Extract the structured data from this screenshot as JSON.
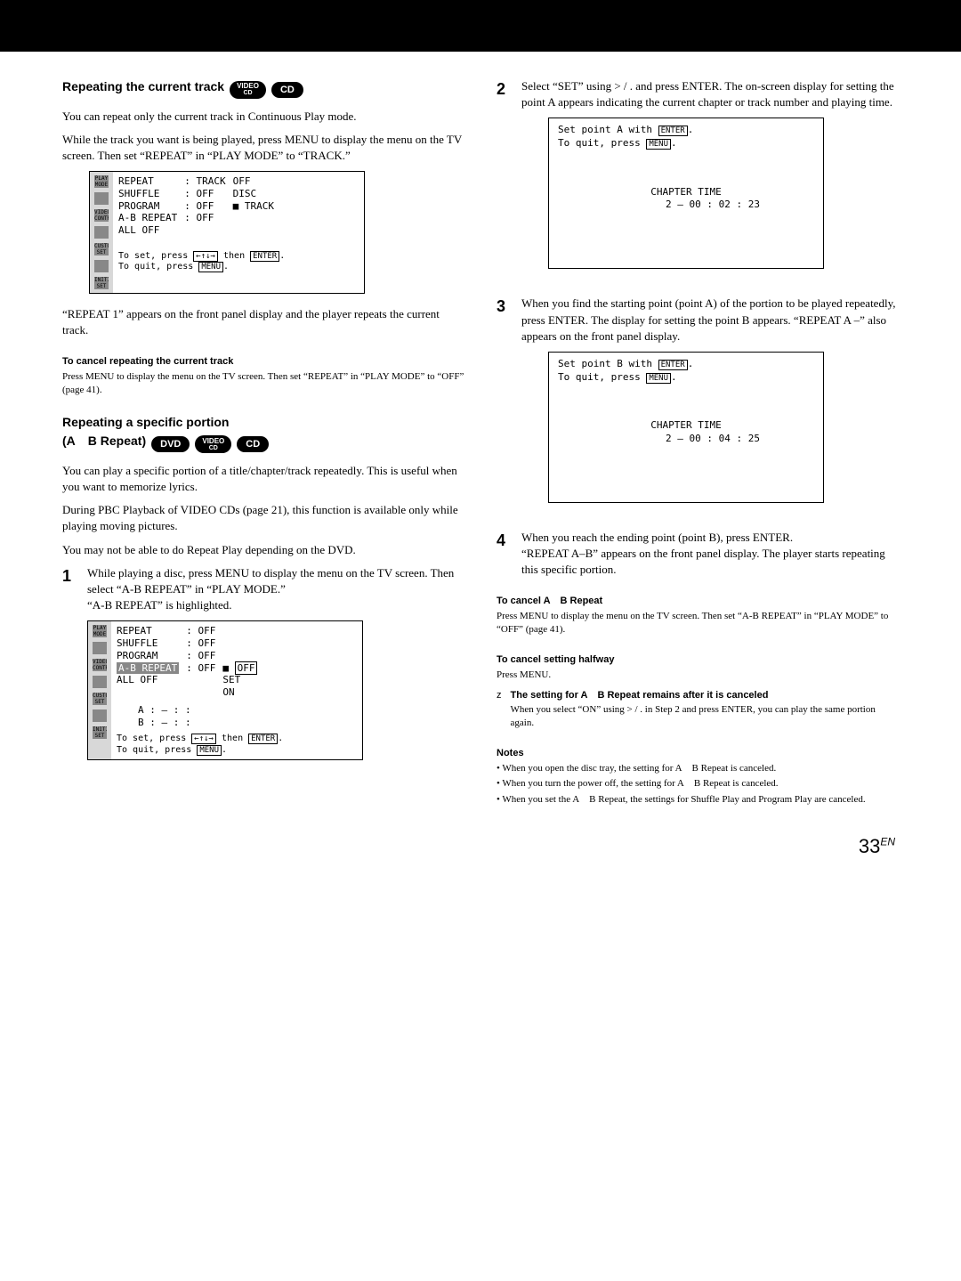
{
  "badges": {
    "video_l1": "VIDEO",
    "video_l2": "CD",
    "cd": "CD",
    "dvd": "DVD"
  },
  "left": {
    "s1_h": "Repeating the current track",
    "s1_p1": "You can repeat only the current track in Continuous Play mode.",
    "s1_p2": "While the track you want is being played, press MENU to display the menu on the TV screen.  Then set “REPEAT” in “PLAY MODE” to “TRACK.”",
    "osd1": {
      "rows": [
        [
          "REPEAT",
          ": TRACK",
          "OFF"
        ],
        [
          "SHUFFLE",
          ": OFF",
          "DISC"
        ],
        [
          "PROGRAM",
          ": OFF",
          "TRACK"
        ],
        [
          "A-B REPEAT",
          ": OFF",
          ""
        ],
        [
          "ALL OFF",
          "",
          ""
        ]
      ],
      "marker_at_row": 2,
      "foot1a": "To  set, press ",
      "foot1b": " then ",
      "foot2": "To  quit, press ",
      "key_arrows": "←↑↓→",
      "key_enter": "ENTER",
      "key_menu": "MENU"
    },
    "s1_p3": "“REPEAT 1” appears on the front panel display and the player repeats the current track.",
    "cancel1_h": "To cancel repeating the current track",
    "cancel1_p": "Press MENU to display the menu on the TV screen.  Then set “REPEAT” in “PLAY MODE” to “OFF” (page 41).",
    "s2_h_l1": "Repeating a specific portion",
    "s2_h_l2": "(A B Repeat)",
    "s2_p1": "You can play a specific portion of a title/chapter/track repeatedly. This is useful when you want to memorize lyrics.",
    "s2_p2": "During PBC Playback of VIDEO CDs (page 21), this function is available only while playing moving pictures.",
    "s2_p3": "You may not be able to do Repeat Play depending on the DVD.",
    "step1": "While playing a disc, press MENU to display the menu on the TV screen.  Then select “A-B REPEAT” in “PLAY MODE.”\n“A-B REPEAT” is highlighted.",
    "osd2": {
      "rows": [
        [
          "REPEAT",
          ": OFF",
          ""
        ],
        [
          "SHUFFLE",
          ": OFF",
          ""
        ],
        [
          "PROGRAM",
          ": OFF",
          ""
        ],
        [
          "A-B REPEAT",
          ": OFF",
          "OFF"
        ],
        [
          "ALL OFF",
          "",
          "SET"
        ],
        [
          "",
          "",
          "ON"
        ]
      ],
      "hl_row": 3,
      "hl_opt_row": 3,
      "a_row": "A :            –      :       :",
      "b_row": "B :            –      :       :",
      "foot1a": "To  set, press ",
      "foot1b": " then ",
      "foot2": "To  quit, press ",
      "key_arrows": "←↑↓→",
      "key_enter": "ENTER",
      "key_menu": "MENU"
    }
  },
  "right": {
    "step2": "Select “SET” using > / .  and press ENTER. The on-screen display for setting the point A appears indicating the current chapter or track number and playing time.",
    "osdA": {
      "l1a": "Set point A with ",
      "l2": "To  quit, press ",
      "ct_h": "CHAPTER TIME",
      "ct_v": "2 – 00 : 02 : 23",
      "key_enter": "ENTER",
      "key_menu": "MENU"
    },
    "step3": "When you find the starting point (point A) of the portion to be played repeatedly, press ENTER. The display for setting the point B appears. “REPEAT A –” also appears on the front panel display.",
    "osdB": {
      "l1a": "Set point B with ",
      "l2": "To  quit, press ",
      "ct_h": "CHAPTER TIME",
      "ct_v": "2 – 00 : 04 : 25",
      "key_enter": "ENTER",
      "key_menu": "MENU"
    },
    "step4": "When you reach the ending point (point B), press ENTER.\n“REPEAT A–B” appears on the front panel display.  The player starts repeating this specific portion.",
    "cancelAB_h": "To cancel A B Repeat",
    "cancelAB_p": "Press MENU to display the menu on the TV screen.  Then set “A-B REPEAT” in “PLAY MODE” to “OFF” (page 41).",
    "cancelHalf_h": "To cancel setting halfway",
    "cancelHalf_p": "Press MENU.",
    "tip_h": "The setting for A B Repeat remains after it is canceled",
    "tip_p": "When you select “ON” using > / .  in Step 2 and press ENTER, you can play the same portion again.",
    "notes_h": "Notes",
    "notes": [
      "• When you open the disc tray, the setting for A B Repeat is canceled.",
      "• When you turn the power off, the setting for A B Repeat is canceled.",
      "• When you set the A B Repeat, the settings for Shuffle Play and Program Play are canceled."
    ]
  },
  "page_number": "33",
  "page_lang": "EN",
  "rail_labels": [
    "PLAY MODE",
    "",
    "VIDEO CONTROL",
    "",
    "CUSTOM SET UP",
    "",
    "INITIAL SET UP"
  ],
  "rail_icons_count": 7
}
